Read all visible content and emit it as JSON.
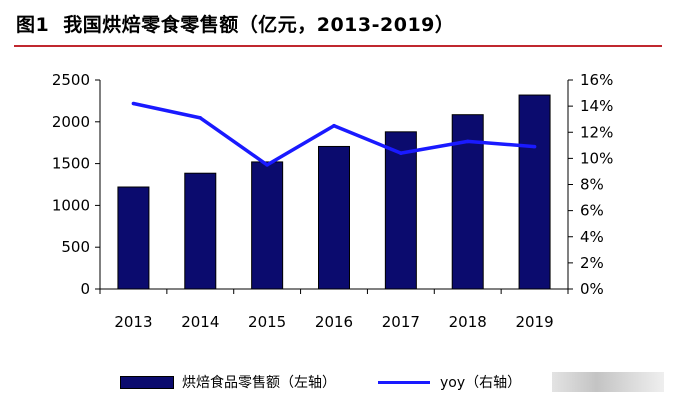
{
  "figure": {
    "label": "图1",
    "title": "我国烘焙零食零售额（亿元，2013-2019）"
  },
  "colors": {
    "bar": "#0b0b6e",
    "line": "#1a1aff",
    "title_rule": "#c0282f"
  },
  "chart_data": {
    "type": "bar",
    "categories": [
      "2013",
      "2014",
      "2015",
      "2016",
      "2017",
      "2018",
      "2019"
    ],
    "series": [
      {
        "name": "烘焙食品零售额（左轴）",
        "type": "bar",
        "axis": "left",
        "values": [
          1220,
          1385,
          1520,
          1705,
          1880,
          2085,
          2320
        ]
      },
      {
        "name": "yoy（右轴）",
        "type": "line",
        "axis": "right",
        "values": [
          14.2,
          13.1,
          9.5,
          12.5,
          10.4,
          11.3,
          10.9
        ]
      }
    ],
    "y_left": {
      "ylim": [
        0,
        2500
      ],
      "ticks": [
        "0",
        "500",
        "1000",
        "1500",
        "2000",
        "2500"
      ]
    },
    "y_right": {
      "ylim": [
        0,
        16
      ],
      "ticks": [
        "0%",
        "2%",
        "4%",
        "6%",
        "8%",
        "10%",
        "12%",
        "14%",
        "16%"
      ]
    },
    "grid": false,
    "legend_position": "bottom"
  }
}
